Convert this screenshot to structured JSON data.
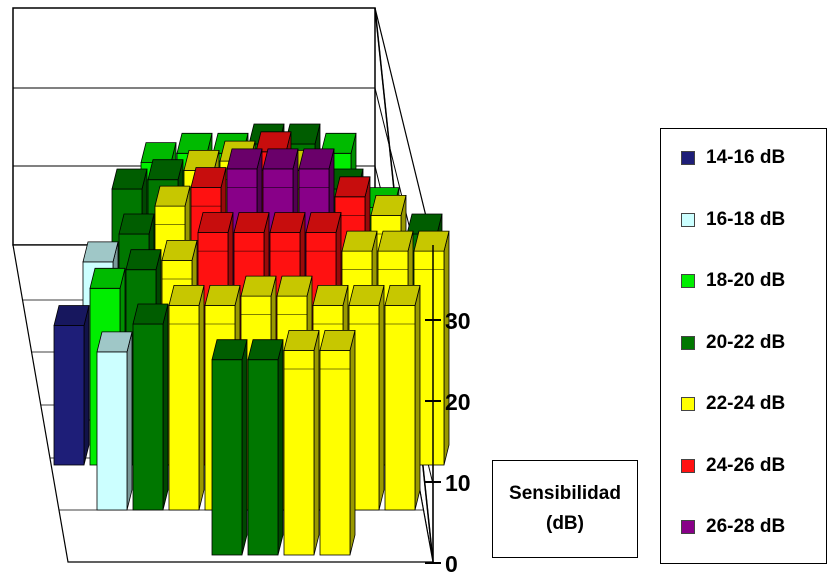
{
  "chart_data": {
    "type": "bar3d",
    "zlabel": "Sensibilidad (dB)",
    "zlabel_lines": [
      "Sensibilidad",
      "(dB)"
    ],
    "zticks": [
      "0",
      "10",
      "20",
      "30"
    ],
    "zlim": [
      0,
      30
    ],
    "legend_position": "right",
    "legend": [
      {
        "label": "14-16 dB",
        "color": "#1e1e78"
      },
      {
        "label": "16-18 dB",
        "color": "#ccffff"
      },
      {
        "label": "18-20 dB",
        "color": "#00ee00"
      },
      {
        "label": "20-22 dB",
        "color": "#007700"
      },
      {
        "label": "22-24 dB",
        "color": "#ffff00"
      },
      {
        "label": "24-26 dB",
        "color": "#ff1111"
      },
      {
        "label": "26-28 dB",
        "color": "#880088"
      }
    ],
    "rows": [
      {
        "values": [
          null,
          null,
          null,
          18,
          19,
          19,
          20,
          20,
          19,
          null,
          null
        ]
      },
      {
        "values": [
          null,
          null,
          20,
          21,
          22,
          23,
          24,
          22,
          20,
          18,
          null
        ]
      },
      {
        "values": [
          null,
          17,
          20,
          23,
          25,
          27,
          27,
          27,
          24,
          22,
          20
        ]
      },
      {
        "values": [
          15,
          19,
          21,
          22,
          25,
          25,
          25,
          25,
          23,
          23,
          23
        ]
      },
      {
        "values": [
          null,
          17,
          20,
          22,
          22,
          23,
          23,
          22,
          22,
          22,
          null
        ]
      },
      {
        "values": [
          null,
          null,
          null,
          null,
          21,
          21,
          22,
          22,
          null,
          null,
          null
        ]
      }
    ]
  }
}
